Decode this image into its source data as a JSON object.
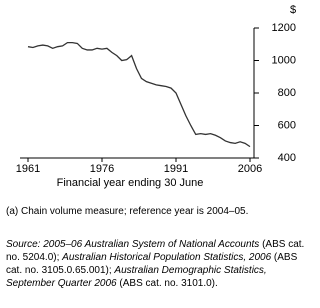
{
  "chart_data": {
    "type": "line",
    "y_unit": "$",
    "x_label": "Financial year ending 30 June",
    "x": [
      1961,
      1962,
      1963,
      1964,
      1965,
      1966,
      1967,
      1968,
      1969,
      1970,
      1971,
      1972,
      1973,
      1974,
      1975,
      1976,
      1977,
      1978,
      1979,
      1980,
      1981,
      1982,
      1983,
      1984,
      1985,
      1986,
      1987,
      1988,
      1989,
      1990,
      1991,
      1992,
      1993,
      1994,
      1995,
      1996,
      1997,
      1998,
      1999,
      2000,
      2001,
      2002,
      2003,
      2004,
      2005,
      2006
    ],
    "values": [
      1085,
      1080,
      1090,
      1095,
      1090,
      1075,
      1085,
      1090,
      1110,
      1110,
      1105,
      1075,
      1065,
      1065,
      1075,
      1070,
      1075,
      1050,
      1030,
      1000,
      1005,
      1030,
      950,
      890,
      870,
      860,
      850,
      845,
      840,
      830,
      800,
      730,
      660,
      600,
      545,
      550,
      545,
      550,
      540,
      525,
      505,
      495,
      490,
      500,
      490,
      470
    ],
    "color": "#333333",
    "xlim": [
      1961,
      2006
    ],
    "xticks": [
      1961,
      1976,
      1991,
      2006
    ],
    "ylim": [
      400,
      1200
    ],
    "yticks": [
      400,
      600,
      800,
      1000,
      1200
    ],
    "y_axis_side": "right",
    "footnote": "(a) Chain volume measure; reference year is 2004–05.",
    "source": [
      "Source: 2005–06 Australian System of National Accounts",
      " (ABS cat. no. 5204.0); ",
      "Australian Historical Population Statistics, 2006",
      " (ABS cat. no. 3105.0.65.001); ",
      "Australian Demographic Statistics, September Quarter 2006",
      " (ABS cat. no. 3101.0)."
    ]
  }
}
